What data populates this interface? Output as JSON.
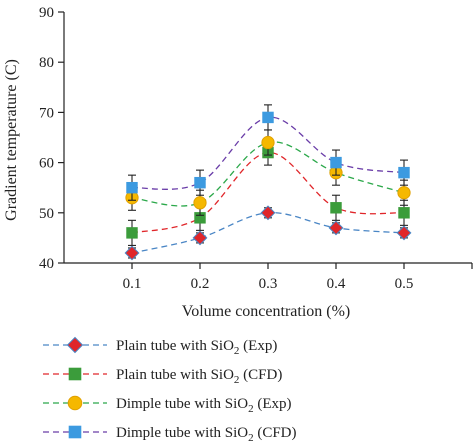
{
  "chart_data": {
    "type": "line",
    "xlabel": "Volume concentration (%)",
    "ylabel": "Gradient temperature (C)",
    "x": [
      0.1,
      0.2,
      0.3,
      0.4,
      0.5
    ],
    "xticks": [
      "0.1",
      "0.2",
      "0.3",
      "0.4",
      "0.5"
    ],
    "xlim": [
      0.0,
      0.6
    ],
    "ylim": [
      40,
      90
    ],
    "yticks": [
      "40",
      "50",
      "60",
      "70",
      "80",
      "90"
    ],
    "grid": false,
    "legend_position": "bottom",
    "series": [
      {
        "name": "Plain tube with SiO2 (Exp)",
        "legend_base": "Plain tube with SiO",
        "legend_sub": "2",
        "legend_suffix": " (Exp)",
        "values": [
          42,
          45,
          50,
          47,
          46
        ],
        "error": [
          1,
          1,
          1,
          1,
          1
        ],
        "color": "#4a86c5",
        "marker": "diamond",
        "marker_fill": "#e0262a",
        "marker_stroke": "#4a86c5"
      },
      {
        "name": "Plain tube with SiO2 (CFD)",
        "legend_base": "Plain tube with SiO",
        "legend_sub": "2",
        "legend_suffix": " (CFD)",
        "values": [
          46,
          49,
          62,
          51,
          50
        ],
        "error": [
          2.5,
          2.5,
          2.5,
          2.5,
          2.5
        ],
        "color": "#e0262a",
        "marker": "square",
        "marker_fill": "#3b9c3b",
        "marker_stroke": "#3b9c3b"
      },
      {
        "name": "Dimple tube with SiO2 (Exp)",
        "legend_base": "Dimple tube with SiO",
        "legend_sub": "2",
        "legend_suffix": " (Exp)",
        "values": [
          53,
          52,
          64,
          58,
          54
        ],
        "error": [
          2.5,
          2.5,
          2.5,
          2.5,
          2.5
        ],
        "color": "#2ba84a",
        "marker": "circle",
        "marker_fill": "#f5b800",
        "marker_stroke": "#f5b800"
      },
      {
        "name": "Dimple tube with SiO2 (CFD)",
        "legend_base": "Dimple tube with SiO",
        "legend_sub": "2",
        "legend_suffix": " (CFD)",
        "values": [
          55,
          56,
          69,
          60,
          58
        ],
        "error": [
          2.5,
          2.5,
          2.5,
          2.5,
          2.5
        ],
        "color": "#6a3da8",
        "marker": "square",
        "marker_fill": "#3c9ae0",
        "marker_stroke": "#3c9ae0"
      }
    ]
  }
}
